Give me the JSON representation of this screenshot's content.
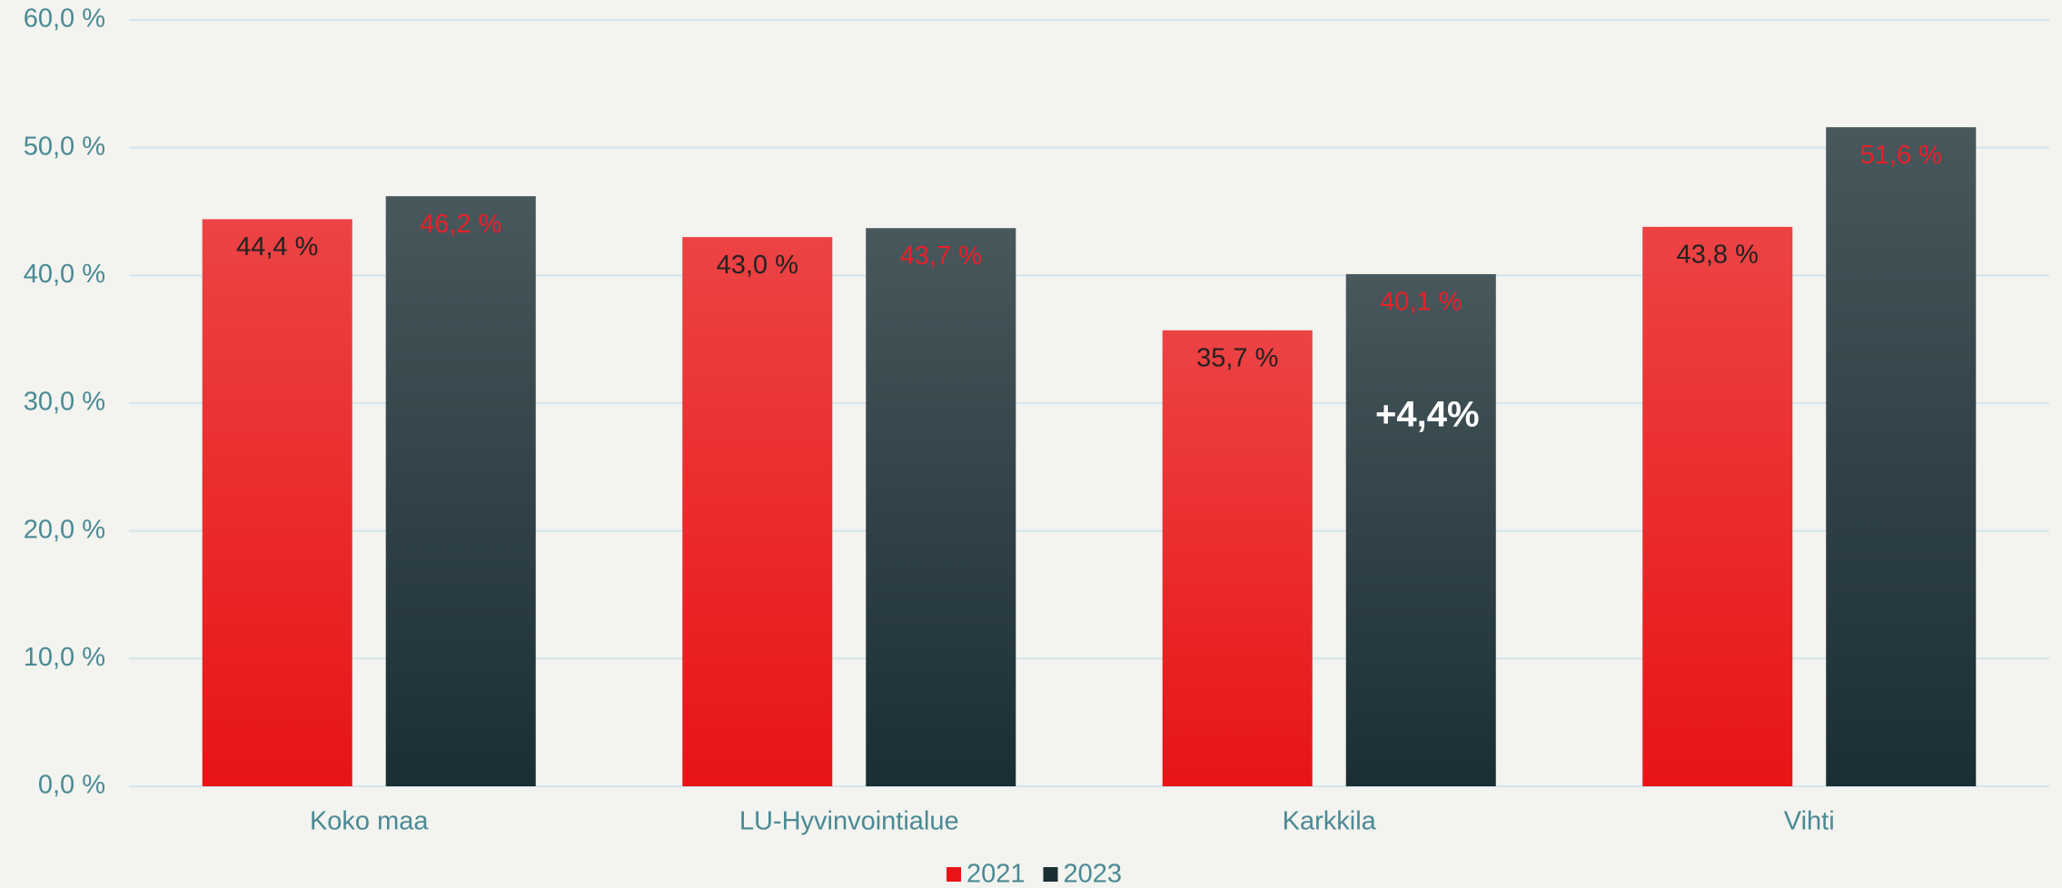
{
  "chart_data": {
    "type": "bar",
    "categories": [
      "Koko maa",
      "LU-Hyvinvointialue",
      "Karkkila",
      "Vihti"
    ],
    "series": [
      {
        "name": "2021",
        "color": "#e81416",
        "label_color": "#222222",
        "values": [
          44.4,
          43.0,
          35.7,
          43.8
        ],
        "value_labels": [
          "44,4 %",
          "43,0 %",
          "35,7 %",
          "43,8 %"
        ]
      },
      {
        "name": "2023",
        "color": "#1a2e34",
        "label_color": "#e8202a",
        "values": [
          46.2,
          43.7,
          40.1,
          51.6
        ],
        "value_labels": [
          "46,2 %",
          "43,7 %",
          "40,1 %",
          "51,6 %"
        ]
      }
    ],
    "ylim": [
      0,
      60
    ],
    "yticks": [
      {
        "value": 0,
        "label": "0,0 %"
      },
      {
        "value": 10,
        "label": "10,0 %"
      },
      {
        "value": 20,
        "label": "20,0 %"
      },
      {
        "value": 30,
        "label": "30,0 %"
      },
      {
        "value": 40,
        "label": "40,0 %"
      },
      {
        "value": 50,
        "label": "50,0 %"
      },
      {
        "value": 60,
        "label": "60,0 %"
      }
    ],
    "grid": true,
    "legend": "bottom",
    "annotations": [
      {
        "text": "+4,4%"
      }
    ]
  }
}
